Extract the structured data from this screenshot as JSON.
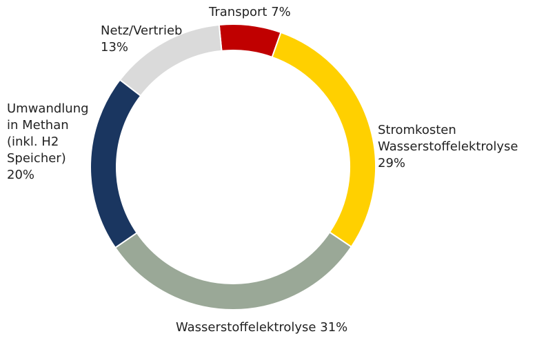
{
  "chart_data": {
    "type": "donut",
    "categories": [
      "Transport",
      "Stromkosten Wasserstoffelektrolyse",
      "Wasserstoffelektrolyse",
      "Umwandlung in Methan (inkl. H2 Speicher)",
      "Netz/Vertrieb"
    ],
    "values": [
      7,
      29,
      31,
      20,
      13
    ],
    "value_labels": [
      "7%",
      "29%",
      "31%",
      "20%",
      "13%"
    ],
    "colors": [
      "#c00000",
      "#ffd000",
      "#9aa897",
      "#1a3660",
      "#dadada"
    ]
  }
}
